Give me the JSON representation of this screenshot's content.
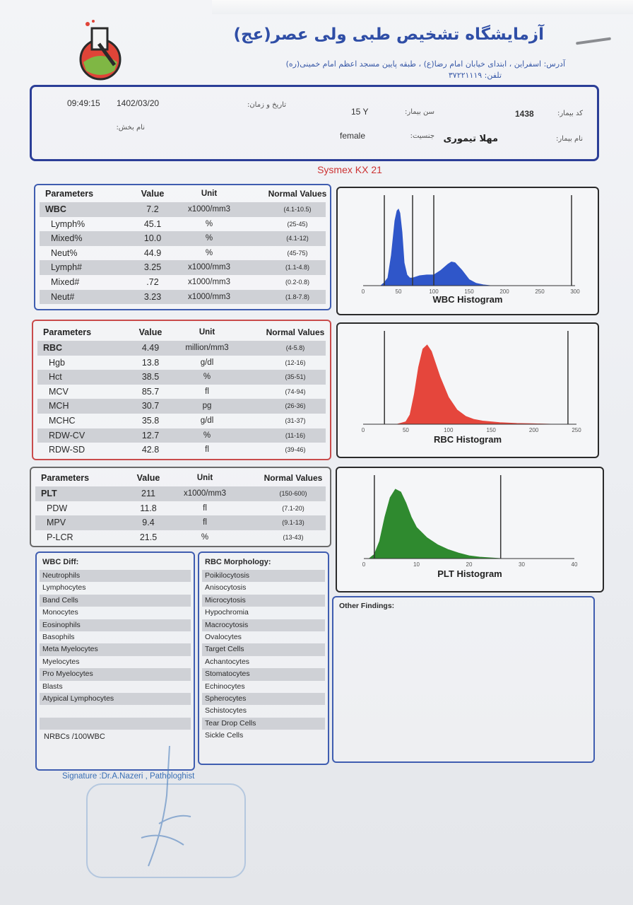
{
  "lab": {
    "title": "آزمایشگاه تشخیص طبی ولی عصر(عج)",
    "address": "آدرس: اسفراین ، ابتدای خیابان امام رضا(ع) ، طبقه پایین مسجد اعظم امام خمینی(ره)",
    "phone": "تلفن: ۳۷۲۲۱۱۱۹"
  },
  "patient": {
    "code_label": "کد بیمار:",
    "code": "1438",
    "name_label": "نام بیمار:",
    "name": "مهلا تیموری",
    "age_label": "سن بیمار:",
    "age": "15 Y",
    "gender_label": "جنسیت:",
    "gender": "female",
    "datetime_label": "تاریخ و زمان:",
    "date": "1402/03/20",
    "time": "09:49:15",
    "ward_label": "نام بخش:"
  },
  "device": "Sysmex KX 21",
  "headers": {
    "param": "Parameters",
    "value": "Value",
    "unit": "Unit",
    "normal": "Normal Values"
  },
  "wbc_table": [
    {
      "param": "WBC",
      "value": "7.2",
      "unit": "x1000/mm3",
      "normal": "(4.1-10.5)"
    },
    {
      "param": "Lymph%",
      "value": "45.1",
      "unit": "%",
      "normal": "(25-45)"
    },
    {
      "param": "Mixed%",
      "value": "10.0",
      "unit": "%",
      "normal": "(4.1-12)"
    },
    {
      "param": "Neut%",
      "value": "44.9",
      "unit": "%",
      "normal": "(45-75)"
    },
    {
      "param": "Lymph#",
      "value": "3.25",
      "unit": "x1000/mm3",
      "normal": "(1.1-4.8)"
    },
    {
      "param": "Mixed#",
      "value": ".72",
      "unit": "x1000/mm3",
      "normal": "(0.2-0.8)"
    },
    {
      "param": "Neut#",
      "value": "3.23",
      "unit": "x1000/mm3",
      "normal": "(1.8-7.8)"
    }
  ],
  "rbc_table": [
    {
      "param": "RBC",
      "value": "4.49",
      "unit": "million/mm3",
      "normal": "(4-5.8)"
    },
    {
      "param": "Hgb",
      "value": "13.8",
      "unit": "g/dl",
      "normal": "(12-16)"
    },
    {
      "param": "Hct",
      "value": "38.5",
      "unit": "%",
      "normal": "(35-51)"
    },
    {
      "param": "MCV",
      "value": "85.7",
      "unit": "fl",
      "normal": "(74-94)"
    },
    {
      "param": "MCH",
      "value": "30.7",
      "unit": "pg",
      "normal": "(26-36)"
    },
    {
      "param": "MCHC",
      "value": "35.8",
      "unit": "g/dl",
      "normal": "(31-37)"
    },
    {
      "param": "RDW-CV",
      "value": "12.7",
      "unit": "%",
      "normal": "(11-16)"
    },
    {
      "param": "RDW-SD",
      "value": "42.8",
      "unit": "fl",
      "normal": "(39-46)"
    }
  ],
  "plt_table": [
    {
      "param": "PLT",
      "value": "211",
      "unit": "x1000/mm3",
      "normal": "(150-600)"
    },
    {
      "param": "PDW",
      "value": "11.8",
      "unit": "fl",
      "normal": "(7.1-20)"
    },
    {
      "param": "MPV",
      "value": "9.4",
      "unit": "fl",
      "normal": "(9.1-13)"
    },
    {
      "param": "P-LCR",
      "value": "21.5",
      "unit": "%",
      "normal": "(13-43)"
    }
  ],
  "wbc_diff": {
    "title": "WBC Diff:",
    "items": [
      "Neutrophils",
      "Lymphocytes",
      "Band Cells",
      "Monocytes",
      "Eosinophils",
      "Basophils",
      "Meta Myelocytes",
      "Myelocytes",
      "Pro Myelocytes",
      "Blasts",
      "Atypical Lymphocytes",
      "",
      ""
    ],
    "nrbc": "NRBCs /100WBC"
  },
  "rbc_morph": {
    "title": "RBC Morphology:",
    "items": [
      "Poikilocytosis",
      "Anisocytosis",
      "Microcytosis",
      "Hypochromia",
      "Macrocytosis",
      "Ovalocytes",
      "Target Cells",
      "Achantocytes",
      "Stomatocytes",
      "Echinocytes",
      "Spherocytes",
      "Schistocytes",
      "Tear Drop Cells",
      "Sickle Cells"
    ]
  },
  "other_findings": "Other Findings:",
  "signature": "Signature :Dr.A.Nazeri , Pathologhist",
  "chart_data": [
    {
      "type": "area",
      "title": "WBC Histogram",
      "color": "#2f56c9",
      "xlim": [
        0,
        300
      ],
      "ticks": [
        "0",
        "50",
        "100",
        "150",
        "200",
        "250",
        "300"
      ],
      "markers": [
        30,
        70,
        100,
        295
      ],
      "x": [
        0,
        25,
        30,
        35,
        40,
        45,
        48,
        50,
        52,
        55,
        58,
        62,
        66,
        70,
        80,
        90,
        100,
        110,
        120,
        125,
        130,
        140,
        150,
        160,
        170,
        180,
        190,
        200
      ],
      "y": [
        0,
        0,
        0.04,
        0.1,
        0.4,
        0.85,
        0.98,
        1.0,
        0.95,
        0.7,
        0.3,
        0.14,
        0.1,
        0.1,
        0.13,
        0.14,
        0.14,
        0.2,
        0.28,
        0.31,
        0.3,
        0.2,
        0.08,
        0.03,
        0.01,
        0,
        0,
        0
      ]
    },
    {
      "type": "area",
      "title": "RBC Histogram",
      "color": "#e5463c",
      "xlim": [
        0,
        250
      ],
      "ticks": [
        "0",
        "50",
        "100",
        "150",
        "200",
        "250"
      ],
      "markers": [
        25,
        240
      ],
      "x": [
        0,
        40,
        50,
        55,
        60,
        65,
        70,
        75,
        80,
        90,
        100,
        110,
        120,
        130,
        140,
        150,
        160,
        180,
        200,
        220,
        240
      ],
      "y": [
        0,
        0,
        0.03,
        0.12,
        0.38,
        0.72,
        0.95,
        1.0,
        0.92,
        0.6,
        0.34,
        0.18,
        0.1,
        0.06,
        0.04,
        0.03,
        0.02,
        0.01,
        0.005,
        0,
        0
      ]
    },
    {
      "type": "area",
      "title": "PLT Histogram",
      "color": "#2f8a2f",
      "xlim": [
        0,
        40
      ],
      "ticks": [
        "0",
        "10",
        "20",
        "30",
        "40"
      ],
      "markers": [
        2,
        26
      ],
      "x": [
        0,
        1,
        2,
        3,
        4,
        5,
        6,
        7,
        8,
        9,
        10,
        12,
        14,
        16,
        18,
        20,
        22,
        24,
        26,
        30,
        40
      ],
      "y": [
        0,
        0,
        0.06,
        0.25,
        0.6,
        0.88,
        1.0,
        0.96,
        0.8,
        0.6,
        0.45,
        0.3,
        0.2,
        0.13,
        0.08,
        0.04,
        0.02,
        0.01,
        0,
        0,
        0
      ]
    }
  ]
}
